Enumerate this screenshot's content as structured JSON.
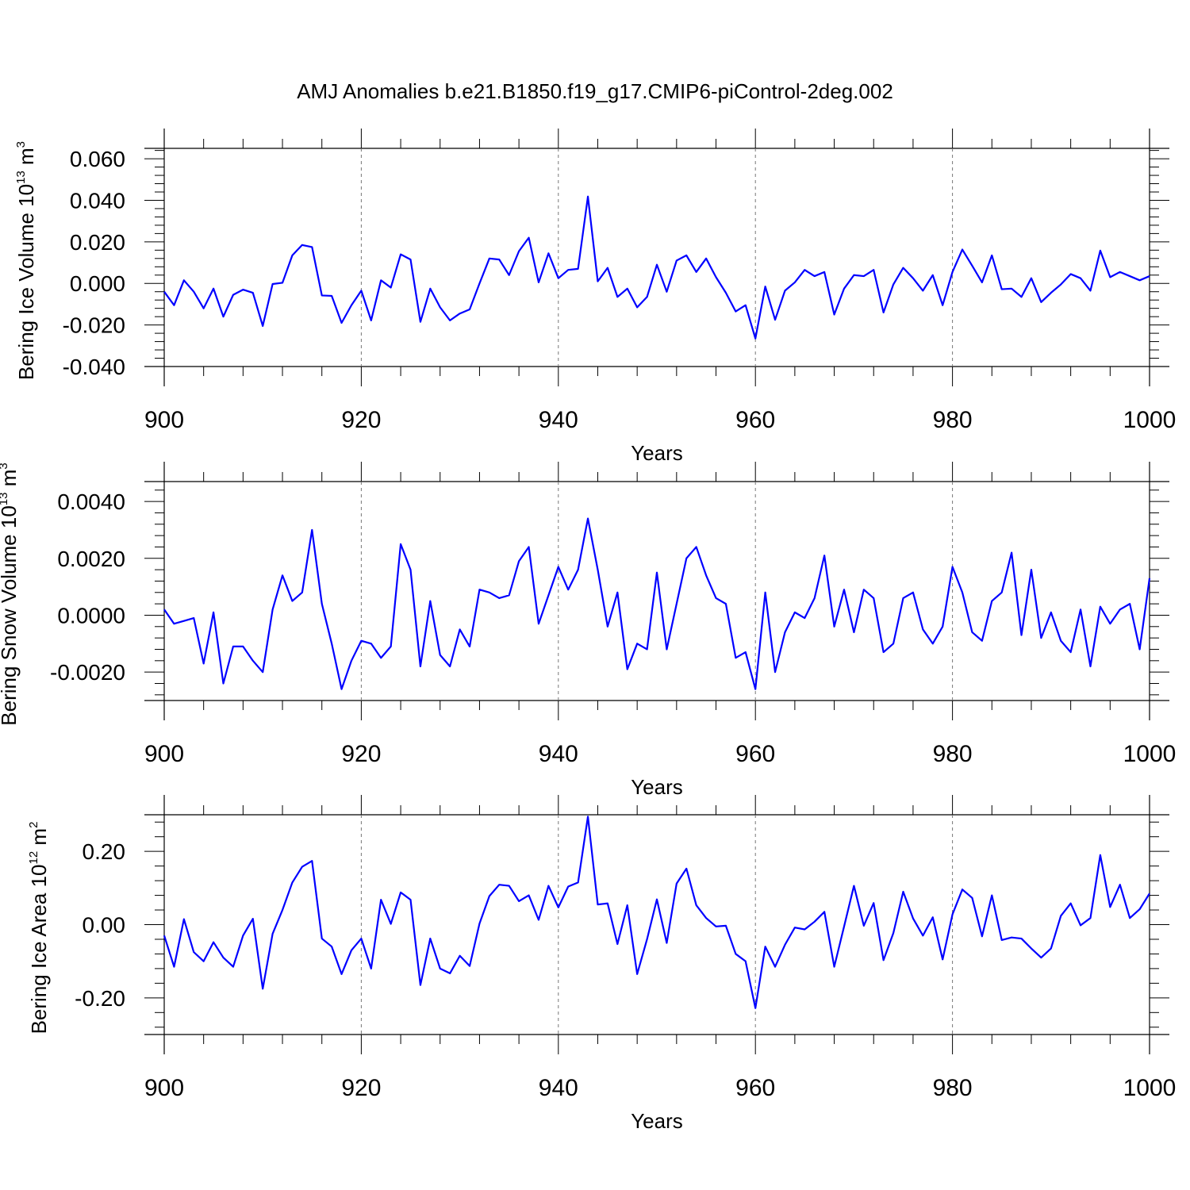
{
  "title": "AMJ Anomalies b.e21.B1850.f19_g17.CMIP6-piControl-2deg.002",
  "line_color": "#0000ff",
  "chart_data": [
    {
      "type": "line",
      "title": "",
      "xlabel": "Years",
      "ylabel": "Bering Ice Volume 10",
      "ylabel_exponent": "13",
      "ylabel_unit": "m",
      "ylabel_unit_exponent": "3",
      "xlim": [
        900,
        1000
      ],
      "ylim": [
        -0.04,
        0.065
      ],
      "xticks": [
        900,
        920,
        940,
        960,
        980,
        1000
      ],
      "xtick_labels": [
        "900",
        "920",
        "940",
        "960",
        "980",
        "1000"
      ],
      "yticks": [
        -0.04,
        -0.02,
        0,
        0.02,
        0.04,
        0.06
      ],
      "ytick_labels": [
        "-0.040",
        "-0.020",
        "0.000",
        "0.020",
        "0.040",
        "0.060"
      ],
      "grid": "dashed vertical at major x ticks",
      "x_start": 900,
      "series": [
        {
          "name": "Bering Ice Volume",
          "values": [
            -0.004,
            -0.0105,
            0.0015,
            -0.004,
            -0.012,
            -0.0025,
            -0.016,
            -0.0055,
            -0.003,
            -0.0045,
            -0.0205,
            -0.0003,
            0.0003,
            0.0135,
            0.0185,
            0.0175,
            -0.0058,
            -0.006,
            -0.019,
            -0.0105,
            -0.0035,
            -0.0178,
            0.0015,
            -0.002,
            0.014,
            0.0115,
            -0.0185,
            -0.0025,
            -0.0115,
            -0.0178,
            -0.0145,
            -0.0125,
            0.0,
            0.012,
            0.0115,
            0.004,
            0.0155,
            0.022,
            0.0005,
            0.0145,
            0.0025,
            0.0065,
            0.007,
            0.0418,
            0.001,
            0.0075,
            -0.0065,
            -0.0025,
            -0.0115,
            -0.0065,
            0.009,
            -0.004,
            0.011,
            0.0135,
            0.0055,
            0.012,
            0.003,
            -0.0045,
            -0.0135,
            -0.0105,
            -0.0265,
            -0.0015,
            -0.0175,
            -0.0035,
            0.0005,
            0.0065,
            0.0035,
            0.0055,
            -0.015,
            -0.0025,
            0.004,
            0.0035,
            0.0065,
            -0.014,
            -0.0005,
            0.0075,
            0.0025,
            -0.0035,
            0.004,
            -0.0105,
            0.0055,
            0.0163,
            0.0085,
            0.0005,
            0.0135,
            -0.0028,
            -0.0025,
            -0.0065,
            0.0025,
            -0.009,
            -0.0045,
            -0.0005,
            0.0045,
            0.0025,
            -0.0035,
            0.0158,
            0.003,
            0.0055,
            0.0035,
            0.0015,
            0.0035
          ]
        }
      ]
    },
    {
      "type": "line",
      "title": "",
      "xlabel": "Years",
      "ylabel": "Bering Snow Volume 10",
      "ylabel_exponent": "13",
      "ylabel_unit": "m",
      "ylabel_unit_exponent": "3",
      "xlim": [
        900,
        1000
      ],
      "ylim": [
        -0.003,
        0.0047
      ],
      "xticks": [
        900,
        920,
        940,
        960,
        980,
        1000
      ],
      "xtick_labels": [
        "900",
        "920",
        "940",
        "960",
        "980",
        "1000"
      ],
      "yticks": [
        -0.002,
        0,
        0.002,
        0.004
      ],
      "ytick_labels": [
        "-0.0020",
        "0.0000",
        "0.0020",
        "0.0040"
      ],
      "grid": "dashed vertical at major x ticks",
      "x_start": 900,
      "series": [
        {
          "name": "Bering Snow Volume",
          "values": [
            0.0002,
            -0.0003,
            -0.0002,
            -0.0001,
            -0.0017,
            0.0001,
            -0.0024,
            -0.0011,
            -0.0011,
            -0.0016,
            -0.002,
            0.0002,
            0.0014,
            0.0005,
            0.0008,
            0.003,
            0.0004,
            -0.001,
            -0.0026,
            -0.0016,
            -0.0009,
            -0.001,
            -0.0015,
            -0.0011,
            0.0025,
            0.0016,
            -0.0018,
            0.0005,
            -0.0014,
            -0.0018,
            -0.0005,
            -0.0011,
            0.0009,
            0.0008,
            0.0006,
            0.0007,
            0.0019,
            0.0024,
            -0.0003,
            0.0007,
            0.0017,
            0.0009,
            0.0016,
            0.0034,
            0.0016,
            -0.0004,
            0.0008,
            -0.0019,
            -0.001,
            -0.0012,
            0.0015,
            -0.0012,
            0.0004,
            0.002,
            0.0024,
            0.0014,
            0.0006,
            0.0004,
            -0.0015,
            -0.0013,
            -0.0026,
            0.0008,
            -0.002,
            -0.0006,
            0.0001,
            -0.0001,
            0.0006,
            0.0021,
            -0.0004,
            0.0009,
            -0.0006,
            0.0009,
            0.0006,
            -0.0013,
            -0.001,
            0.0006,
            0.0008,
            -0.0005,
            -0.001,
            -0.0004,
            0.0017,
            0.0008,
            -0.0006,
            -0.0009,
            0.0005,
            0.0008,
            0.0022,
            -0.0007,
            0.0016,
            -0.0008,
            0.0001,
            -0.0009,
            -0.0013,
            0.0002,
            -0.0018,
            0.0003,
            -0.0003,
            0.0002,
            0.0004,
            -0.0012,
            0.0013
          ]
        }
      ]
    },
    {
      "type": "line",
      "title": "",
      "xlabel": "Years",
      "ylabel": "Bering Ice Area 10",
      "ylabel_exponent": "12",
      "ylabel_unit": "m",
      "ylabel_unit_exponent": "2",
      "xlim": [
        900,
        1000
      ],
      "ylim": [
        -0.3,
        0.3
      ],
      "xticks": [
        900,
        920,
        940,
        960,
        980,
        1000
      ],
      "xtick_labels": [
        "900",
        "920",
        "940",
        "960",
        "980",
        "1000"
      ],
      "yticks": [
        -0.2,
        0,
        0.2
      ],
      "ytick_labels": [
        "-0.20",
        "0.00",
        "0.20"
      ],
      "grid": "dashed vertical at major x ticks",
      "x_start": 900,
      "series": [
        {
          "name": "Bering Ice Area",
          "values": [
            -0.03,
            -0.115,
            0.015,
            -0.075,
            -0.1,
            -0.048,
            -0.09,
            -0.115,
            -0.03,
            0.016,
            -0.175,
            -0.025,
            0.04,
            0.115,
            0.158,
            0.174,
            -0.038,
            -0.06,
            -0.135,
            -0.07,
            -0.038,
            -0.12,
            0.068,
            0.002,
            0.088,
            0.068,
            -0.165,
            -0.038,
            -0.12,
            -0.133,
            -0.085,
            -0.113,
            0.003,
            0.078,
            0.109,
            0.106,
            0.064,
            0.08,
            0.013,
            0.106,
            0.047,
            0.104,
            0.115,
            0.295,
            0.055,
            0.058,
            -0.053,
            0.053,
            -0.135,
            -0.04,
            0.069,
            -0.05,
            0.112,
            0.153,
            0.053,
            0.018,
            -0.005,
            -0.003,
            -0.08,
            -0.1,
            -0.228,
            -0.06,
            -0.115,
            -0.055,
            -0.008,
            -0.013,
            0.008,
            0.035,
            -0.115,
            -0.005,
            0.106,
            -0.003,
            0.059,
            -0.097,
            -0.023,
            0.09,
            0.017,
            -0.03,
            0.02,
            -0.095,
            0.028,
            0.096,
            0.073,
            -0.032,
            0.08,
            -0.042,
            -0.035,
            -0.038,
            -0.065,
            -0.09,
            -0.065,
            0.024,
            0.058,
            -0.002,
            0.018,
            0.19,
            0.048,
            0.109,
            0.018,
            0.042,
            0.085
          ]
        }
      ]
    }
  ]
}
